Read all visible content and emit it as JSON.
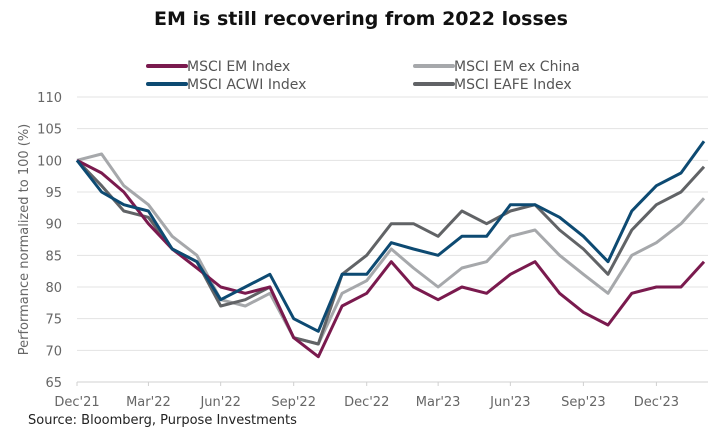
{
  "chart_data": {
    "type": "line",
    "title": "EM is still recovering from 2022 losses",
    "ylabel": "Performance normalized to 100 (%)",
    "xlabel": "",
    "ylim": [
      65,
      110
    ],
    "yticks": [
      65,
      70,
      75,
      80,
      85,
      90,
      95,
      100,
      105,
      110
    ],
    "xticks": [
      {
        "date": "2021-12-31",
        "label": "Dec'21"
      },
      {
        "date": "2022-03-31",
        "label": "Mar'22"
      },
      {
        "date": "2022-06-30",
        "label": "Jun'22"
      },
      {
        "date": "2022-09-30",
        "label": "Sep'22"
      },
      {
        "date": "2022-12-31",
        "label": "Dec'22"
      },
      {
        "date": "2023-03-31",
        "label": "Mar'23"
      },
      {
        "date": "2023-06-30",
        "label": "Jun'23"
      },
      {
        "date": "2023-09-30",
        "label": "Sep'23"
      },
      {
        "date": "2023-12-31",
        "label": "Dec'23"
      }
    ],
    "xlim": [
      "2021-12-31",
      "2024-03-05"
    ],
    "grid": "horizontal",
    "legend": "top",
    "x": [
      "2021-12-31",
      "2022-01-31",
      "2022-02-28",
      "2022-03-31",
      "2022-04-30",
      "2022-05-31",
      "2022-06-30",
      "2022-07-31",
      "2022-08-31",
      "2022-09-30",
      "2022-10-31",
      "2022-11-30",
      "2022-12-31",
      "2023-01-31",
      "2023-02-28",
      "2023-03-31",
      "2023-04-30",
      "2023-05-31",
      "2023-06-30",
      "2023-07-31",
      "2023-08-31",
      "2023-09-30",
      "2023-10-31",
      "2023-11-30",
      "2023-12-31",
      "2024-01-31",
      "2024-02-29"
    ],
    "series": [
      {
        "name": "MSCI EM ex China",
        "color": "#a6a8ab",
        "values": [
          100,
          101,
          96,
          93,
          88,
          85,
          78,
          77,
          79,
          72,
          71,
          79,
          81,
          86,
          83,
          80,
          83,
          84,
          88,
          89,
          85,
          82,
          79,
          85,
          87,
          90,
          94
        ]
      },
      {
        "name": "MSCI EAFE Index",
        "color": "#616366",
        "values": [
          100,
          96,
          92,
          91,
          86,
          84,
          77,
          78,
          80,
          72,
          71,
          82,
          85,
          90,
          90,
          88,
          92,
          90,
          92,
          93,
          89,
          86,
          82,
          89,
          93,
          95,
          99
        ]
      },
      {
        "name": "MSCI EM Index",
        "color": "#7a1a4e",
        "values": [
          100,
          98,
          95,
          90,
          86,
          83,
          80,
          79,
          80,
          72,
          69,
          77,
          79,
          84,
          80,
          78,
          80,
          79,
          82,
          84,
          79,
          76,
          74,
          79,
          80,
          80,
          84
        ]
      },
      {
        "name": "MSCI ACWI Index",
        "color": "#0d4a72",
        "values": [
          100,
          95,
          93,
          92,
          86,
          84,
          78,
          80,
          82,
          75,
          73,
          82,
          82,
          87,
          86,
          85,
          88,
          88,
          93,
          93,
          91,
          88,
          84,
          92,
          96,
          98,
          103
        ]
      }
    ],
    "legend_order": [
      "MSCI EM Index",
      "MSCI EM ex China",
      "MSCI ACWI Index",
      "MSCI EAFE Index"
    ]
  },
  "source": "Source: Bloomberg, Purpose Investments"
}
